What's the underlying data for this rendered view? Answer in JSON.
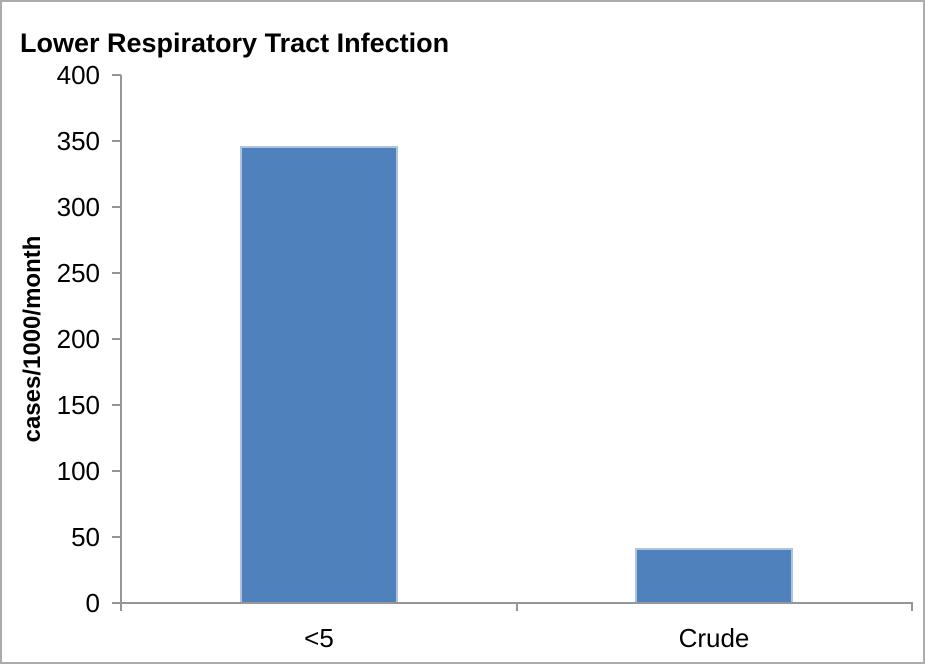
{
  "chart_data": {
    "type": "bar",
    "title": "Lower Respiratory Tract Infection",
    "ylabel": "cases/1000/month",
    "xlabel": "",
    "categories": [
      "<5",
      "Crude"
    ],
    "values": [
      346,
      42
    ],
    "ylim": [
      0,
      400
    ],
    "yticks": [
      0,
      50,
      100,
      150,
      200,
      250,
      300,
      350,
      400
    ],
    "grid": false,
    "legend": false,
    "colors": {
      "bar_fill": "#4F81BD",
      "bar_border": "#AEC3E0",
      "axis_line": "#969696",
      "figure_border": "#ABABAB",
      "text": "#000000",
      "background": "#FFFFFF"
    }
  }
}
